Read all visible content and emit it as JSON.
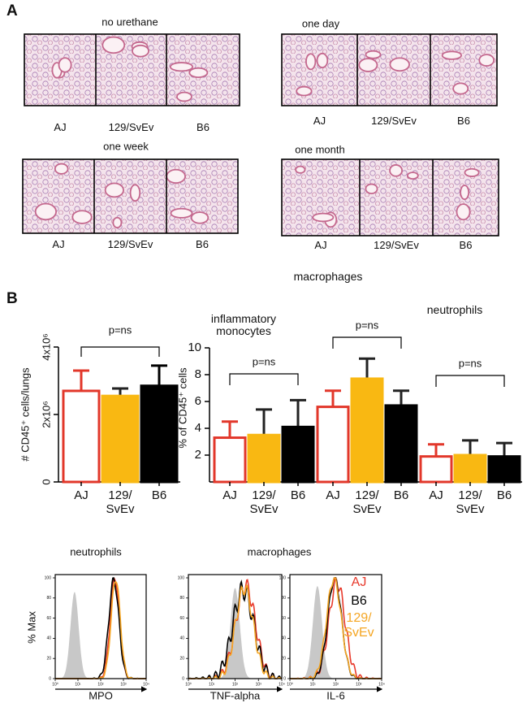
{
  "panel_labels": [
    "A",
    "B"
  ],
  "panel_a": {
    "timepoints": [
      "no urethane",
      "one day",
      "one week",
      "one month"
    ],
    "strains": [
      "AJ",
      "129/SvEv",
      "B6"
    ]
  },
  "chart_data": [
    {
      "type": "bar",
      "ylabel": "# CD45⁺ cells/lungs",
      "categories": [
        "AJ",
        "129/ SvEv",
        "B6"
      ],
      "values": [
        2700000,
        2550000,
        2850000
      ],
      "errors": [
        600000,
        220000,
        600000
      ],
      "colors": [
        "#ffffff",
        "#f9b812",
        "#000000"
      ],
      "edge_colors": [
        "#e2372a",
        "#f9b812",
        "#000000"
      ],
      "ylim": [
        0,
        4000000
      ],
      "yticks": [
        0,
        {
          "value": 2000000,
          "label": "2x10⁶"
        },
        {
          "value": 4000000,
          "label": "4x10⁶"
        }
      ],
      "annotation": "p=ns"
    },
    {
      "type": "grouped_bar",
      "ylabel": "% of CD45⁺ cells",
      "categories": [
        "inflammatory monocytes",
        "macrophages",
        "neutrophils"
      ],
      "series": [
        {
          "name": "AJ",
          "color": "#ffffff",
          "edge_color": "#e2372a",
          "values": [
            3.3,
            5.6,
            1.9
          ],
          "errors": [
            1.2,
            1.2,
            0.9
          ]
        },
        {
          "name": "129/ SvEv",
          "color": "#f9b812",
          "edge_color": "#f9b812",
          "values": [
            3.5,
            7.7,
            2.0
          ],
          "errors": [
            1.9,
            1.5,
            1.1
          ]
        },
        {
          "name": "B6",
          "color": "#000000",
          "edge_color": "#000000",
          "values": [
            4.1,
            5.7,
            1.9
          ],
          "errors": [
            2.0,
            1.1,
            1.0
          ]
        }
      ],
      "ylim": [
        0,
        10
      ],
      "yticks": [
        2,
        4,
        6,
        8,
        10
      ],
      "annotations": [
        "p=ns",
        "p=ns",
        "p=ns"
      ]
    }
  ],
  "panel_c": {
    "titles": [
      "neutrophils",
      "macrophages"
    ],
    "ylabel": "% Max",
    "yticks": [
      0,
      20,
      40,
      60,
      80,
      100
    ],
    "xtick_labels": [
      "10⁰",
      "10¹",
      "10²",
      "10³",
      "10⁴"
    ],
    "xlabels": [
      "MPO",
      "TNF-alpha",
      "IL-6"
    ],
    "legend": [
      {
        "name": "AJ",
        "color": "#e8392b"
      },
      {
        "name": "B6",
        "color": "#000000"
      },
      {
        "name": "129/ SvEv",
        "color": "#f5a623"
      }
    ]
  }
}
